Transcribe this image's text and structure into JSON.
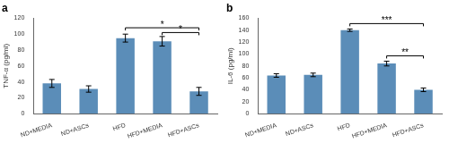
{
  "chart_data": [
    {
      "type": "bar",
      "title": "a",
      "categories": [
        "ND+MEDIA",
        "ND+ASCs",
        "HFD",
        "HFD+MEDIA",
        "HFD+ASCs"
      ],
      "values": [
        38,
        31,
        95,
        91,
        28
      ],
      "errors": [
        5,
        4,
        5,
        6,
        5
      ],
      "color": "#5b8db8",
      "ylabel": "TNF-α (pg/ml)",
      "ylim": [
        0,
        120
      ],
      "yticks": [
        0,
        20,
        40,
        60,
        80,
        100,
        120
      ],
      "grid": false,
      "annotations": [
        {
          "from": "HFD",
          "to": "HFD+ASCs",
          "y": 108,
          "text": "*"
        },
        {
          "from": "HFD+MEDIA",
          "to": "HFD+ASCs",
          "y": 102,
          "text": "*"
        }
      ]
    },
    {
      "type": "bar",
      "title": "b",
      "categories": [
        "ND+MEDIA",
        "ND+ASCs",
        "HFD",
        "HFD+MEDIA",
        "HFD+ASCs"
      ],
      "values": [
        64,
        65,
        140,
        84,
        40
      ],
      "errors": [
        3,
        3,
        2,
        4,
        3
      ],
      "color": "#5b8db8",
      "ylabel": "IL-6 (pg/ml)",
      "ylim": [
        0,
        160
      ],
      "yticks": [
        0,
        20,
        40,
        60,
        80,
        100,
        120,
        140,
        160
      ],
      "grid": false,
      "annotations": [
        {
          "from": "HFD",
          "to": "HFD+ASCs",
          "y": 151,
          "text": "***"
        },
        {
          "from": "HFD+MEDIA",
          "to": "HFD+ASCs",
          "y": 97,
          "text": "**"
        }
      ]
    }
  ]
}
